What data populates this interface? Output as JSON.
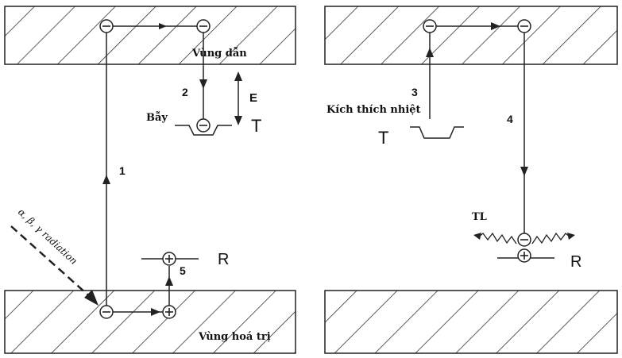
{
  "labels": {
    "conduction_band": "Vùng dẫn",
    "valence_band": "Vùng hoá trị",
    "trap": "Bẫy",
    "thermal_excitation": "Kích thích nhiệt",
    "radiation": "α, β, γ radiation",
    "tl": "TL",
    "energy": "E",
    "trap_level_left": "T",
    "trap_level_right": "T",
    "recomb_left": "R",
    "recomb_right": "R"
  },
  "steps": {
    "s1": "1",
    "s2": "2",
    "s3": "3",
    "s4": "4",
    "s5": "5"
  },
  "symbols": {
    "electron": "−",
    "hole": "+"
  },
  "colors": {
    "line": "#222222",
    "hatch": "#333333",
    "text": "#111111"
  }
}
